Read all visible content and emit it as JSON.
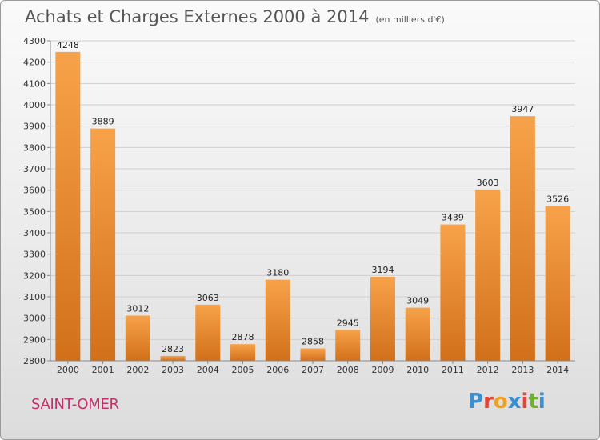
{
  "header": {
    "title": "Achats et Charges Externes 2000 à 2014",
    "subtitle": "(en milliers d'€)"
  },
  "footer": {
    "city": "SAINT-OMER",
    "brand": "Proxiti"
  },
  "colors": {
    "bar_light": "#f7a24a",
    "bar_dark": "#d2701a",
    "city": "#c0306a",
    "brand_letters": [
      "#3a8fd0",
      "#e0453a",
      "#f0a020",
      "#3a8fd0",
      "#e0453a",
      "#70b030",
      "#3a8fd0"
    ]
  },
  "chart_data": {
    "type": "bar",
    "title": "Achats et Charges Externes 2000 à 2014",
    "subtitle": "(en milliers d'€)",
    "xlabel": "",
    "ylabel": "",
    "categories": [
      "2000",
      "2001",
      "2002",
      "2003",
      "2004",
      "2005",
      "2006",
      "2007",
      "2008",
      "2009",
      "2010",
      "2011",
      "2012",
      "2013",
      "2014"
    ],
    "values": [
      4248,
      3889,
      3012,
      2823,
      3063,
      2878,
      3180,
      2858,
      2945,
      3194,
      3049,
      3439,
      3603,
      3947,
      3526
    ],
    "ylim": [
      2800,
      4300
    ],
    "yticks": [
      2800,
      2900,
      3000,
      3100,
      3200,
      3300,
      3400,
      3500,
      3600,
      3700,
      3800,
      3900,
      4000,
      4100,
      4200,
      4300
    ],
    "grid": true,
    "data_labels": true,
    "legend": "none"
  }
}
